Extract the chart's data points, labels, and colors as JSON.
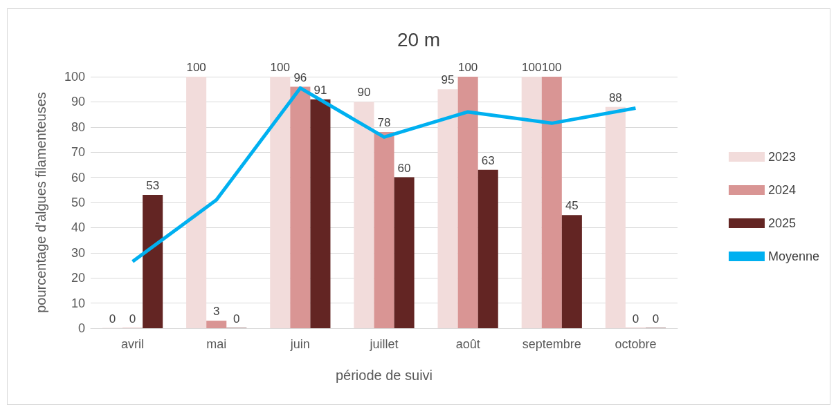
{
  "chart_data": {
    "type": "bar",
    "title": "20 m",
    "xlabel": "période de suivi",
    "ylabel": "pourcentage d'algues filamenteuses",
    "categories": [
      "avril",
      "mai",
      "juin",
      "juillet",
      "août",
      "septembre",
      "octobre"
    ],
    "series": [
      {
        "name": "2023",
        "color": "#f2dcdb",
        "values": [
          0,
          100,
          100,
          90,
          95,
          100,
          88
        ],
        "value_labels": [
          "0",
          "100",
          "100",
          "90",
          "95",
          "100",
          "88"
        ]
      },
      {
        "name": "2024",
        "color": "#d99594",
        "values": [
          0,
          3,
          96,
          78,
          100,
          100,
          0
        ],
        "value_labels": [
          "0",
          "3",
          "96",
          "78",
          "100",
          "100",
          "0"
        ]
      },
      {
        "name": "2025",
        "color": "#632523",
        "values": [
          53,
          0,
          91,
          60,
          63,
          45,
          0
        ],
        "value_labels": [
          "53",
          "0",
          "91",
          "60",
          "63",
          "45",
          "0"
        ]
      },
      {
        "name": "Moyenne",
        "type": "line",
        "color": "#00b0f0",
        "values": [
          26.5,
          51,
          95.5,
          76,
          86,
          81.5,
          87.5
        ]
      }
    ],
    "ylim": [
      0,
      100
    ],
    "yticks": [
      0,
      10,
      20,
      30,
      40,
      50,
      60,
      70,
      80,
      90,
      100
    ],
    "grid": "y",
    "legend": "right",
    "marker": "none"
  }
}
